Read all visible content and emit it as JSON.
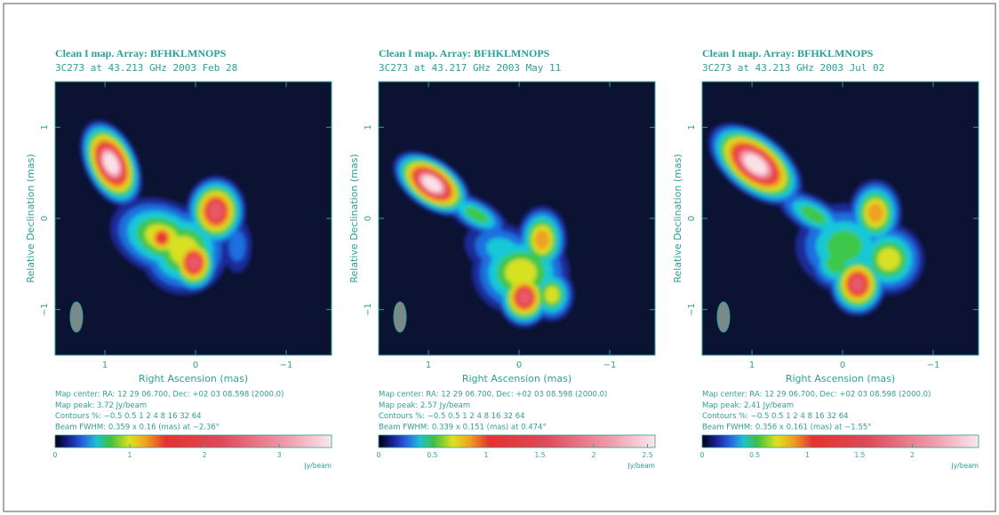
{
  "chart_data": [
    {
      "type": "image",
      "title": "Clean I map.  Array:  BFHKLMNOPS",
      "subtitle": "3C273 at 43.213 GHz 2003 Feb 28",
      "x_label": "Right Ascension  (mas)",
      "y_label": "Relative Declination  (mas)",
      "xlim": [
        1.55,
        -1.5
      ],
      "ylim": [
        -1.5,
        1.5
      ],
      "xticks": [
        1,
        0,
        {
          "value": -1,
          "label": "−1"
        }
      ],
      "yticks": [
        1,
        0,
        {
          "value": -1,
          "label": "−1"
        }
      ],
      "notes": [
        "Map center:  RA: 12 29 06.700,   Dec: +02 03 08.598  (2000.0)",
        "Map peak: 3.72 Jy/beam",
        "Contours %: −0.5 0.5 1 2 4 8 16 32 64",
        "Beam FWHM: 0.359 x 0.16 (mas) at −2.36°"
      ],
      "colorbar": {
        "lim": [
          0,
          3.7
        ],
        "ticks": [
          0,
          1,
          2,
          3
        ],
        "unit": "Jy/beam"
      }
    },
    {
      "type": "image",
      "title": "Clean I map.  Array:  BFHKLMNOPS",
      "subtitle": "3C273 at 43.217 GHz 2003 May 11",
      "x_label": "Right Ascension  (mas)",
      "y_label": "Relative Declination  (mas)",
      "xlim": [
        1.55,
        -1.5
      ],
      "ylim": [
        -1.5,
        1.5
      ],
      "xticks": [
        1,
        0,
        {
          "value": -1,
          "label": "−1"
        }
      ],
      "yticks": [
        1,
        0,
        {
          "value": -1,
          "label": "−1"
        }
      ],
      "notes": [
        "Map center:  RA: 12 29 06.700,   Dec: +02 03 08.598  (2000.0)",
        "Map peak: 2.57 Jy/beam",
        "Contours %: −0.5 0.5 1 2 4 8 16 32 64",
        "Beam FWHM: 0.339 x 0.151 (mas) at 0.474°"
      ],
      "colorbar": {
        "lim": [
          0,
          2.57
        ],
        "ticks": [
          0,
          0.5,
          1,
          1.5,
          2,
          2.5
        ],
        "unit": "Jy/beam"
      }
    },
    {
      "type": "image",
      "title": "Clean I map.  Array:  BFHKLMNOPS",
      "subtitle": "3C273 at 43.213 GHz 2003 Jul 02",
      "x_label": "Right Ascension  (mas)",
      "y_label": "Relative Declination  (mas)",
      "xlim": [
        1.55,
        -1.5
      ],
      "ylim": [
        -1.5,
        1.5
      ],
      "xticks": [
        1,
        0,
        {
          "value": -1,
          "label": "−1"
        }
      ],
      "yticks": [
        1,
        0,
        {
          "value": -1,
          "label": "−1"
        }
      ],
      "notes": [
        "Map center:  RA: 12 29 06.700,   Dec: +02 03 08.598  (2000.0)",
        "Map peak: 2.41 Jy/beam",
        "Contours %: −0.5 0.5 1 2 4 8 16 32 64",
        "Beam FWHM: 0.356 x 0.161 (mas) at −1.55°"
      ],
      "colorbar": {
        "lim": [
          0,
          2.63
        ],
        "ticks": [
          0,
          0.5,
          1,
          1.5,
          2
        ],
        "unit": "Jy/beam"
      }
    }
  ]
}
